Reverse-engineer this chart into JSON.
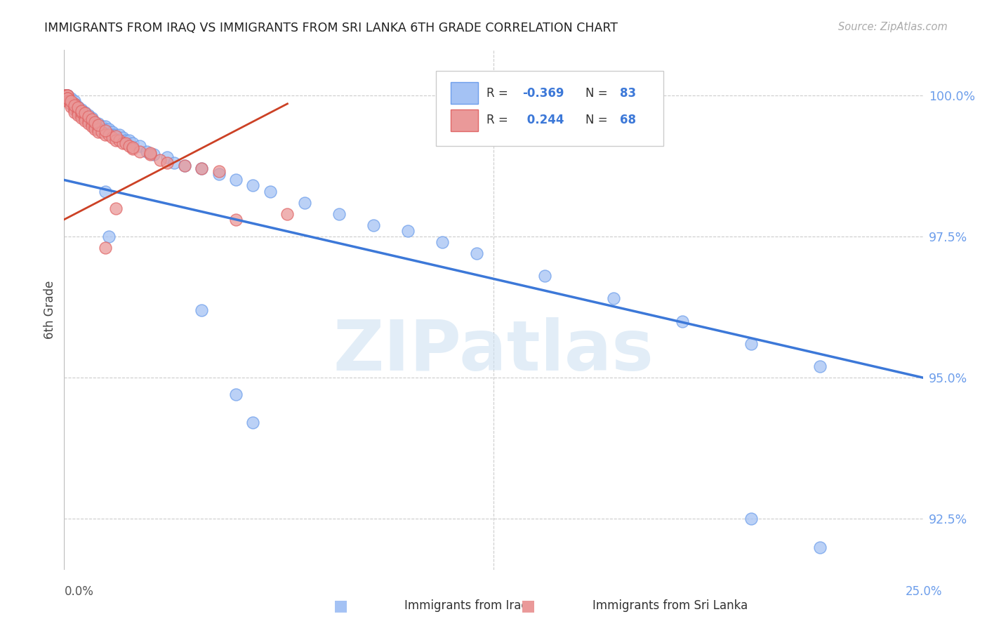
{
  "title": "IMMIGRANTS FROM IRAQ VS IMMIGRANTS FROM SRI LANKA 6TH GRADE CORRELATION CHART",
  "source": "Source: ZipAtlas.com",
  "ylabel": "6th Grade",
  "ytick_labels": [
    "92.5%",
    "95.0%",
    "97.5%",
    "100.0%"
  ],
  "ytick_values": [
    0.925,
    0.95,
    0.975,
    1.0
  ],
  "xmin": 0.0,
  "xmax": 0.25,
  "ymin": 0.916,
  "ymax": 1.008,
  "color_iraq": "#a4c2f4",
  "color_iraq_edge": "#6d9eeb",
  "color_srilanka": "#ea9999",
  "color_srilanka_edge": "#e06666",
  "color_iraq_line": "#3c78d8",
  "color_srilanka_line": "#cc4125",
  "color_right_axis": "#6d9eeb",
  "watermark_color": "#cfe2f3",
  "background_color": "#ffffff",
  "grid_color": "#cccccc",
  "iraq_x": [
    0.0002,
    0.0003,
    0.0005,
    0.0005,
    0.0007,
    0.0008,
    0.001,
    0.001,
    0.001,
    0.001,
    0.0015,
    0.002,
    0.002,
    0.002,
    0.002,
    0.003,
    0.003,
    0.003,
    0.003,
    0.003,
    0.004,
    0.004,
    0.004,
    0.004,
    0.005,
    0.005,
    0.005,
    0.006,
    0.006,
    0.006,
    0.007,
    0.007,
    0.007,
    0.008,
    0.008,
    0.008,
    0.009,
    0.009,
    0.01,
    0.01,
    0.011,
    0.011,
    0.012,
    0.012,
    0.013,
    0.013,
    0.014,
    0.014,
    0.015,
    0.016,
    0.017,
    0.018,
    0.019,
    0.02,
    0.022,
    0.024,
    0.026,
    0.03,
    0.032,
    0.035,
    0.04,
    0.045,
    0.05,
    0.055,
    0.06,
    0.07,
    0.08,
    0.09,
    0.1,
    0.11,
    0.12,
    0.14,
    0.16,
    0.18,
    0.2,
    0.22,
    0.012,
    0.013,
    0.04,
    0.05,
    0.055,
    0.2,
    0.22
  ],
  "iraq_y": [
    1.0,
    1.0,
    1.0,
    1.0,
    1.0,
    1.0,
    1.0,
    1.0,
    1.0,
    0.9995,
    0.999,
    0.999,
    0.9985,
    0.999,
    0.9995,
    0.999,
    0.9985,
    0.9985,
    0.998,
    0.9975,
    0.998,
    0.9975,
    0.997,
    0.9975,
    0.9975,
    0.997,
    0.9965,
    0.996,
    0.997,
    0.9965,
    0.996,
    0.9955,
    0.9965,
    0.996,
    0.995,
    0.9955,
    0.995,
    0.9945,
    0.9945,
    0.995,
    0.994,
    0.9945,
    0.9945,
    0.994,
    0.9935,
    0.994,
    0.9935,
    0.993,
    0.993,
    0.993,
    0.9925,
    0.992,
    0.992,
    0.9915,
    0.991,
    0.99,
    0.9895,
    0.989,
    0.988,
    0.9875,
    0.987,
    0.986,
    0.985,
    0.984,
    0.983,
    0.981,
    0.979,
    0.977,
    0.976,
    0.974,
    0.972,
    0.968,
    0.964,
    0.96,
    0.956,
    0.952,
    0.983,
    0.975,
    0.962,
    0.947,
    0.942,
    0.925,
    0.92
  ],
  "srilanka_x": [
    0.0002,
    0.0003,
    0.0005,
    0.0007,
    0.001,
    0.001,
    0.001,
    0.001,
    0.001,
    0.0015,
    0.002,
    0.002,
    0.002,
    0.003,
    0.003,
    0.003,
    0.003,
    0.004,
    0.004,
    0.004,
    0.005,
    0.005,
    0.005,
    0.006,
    0.006,
    0.007,
    0.007,
    0.008,
    0.008,
    0.009,
    0.009,
    0.01,
    0.01,
    0.011,
    0.012,
    0.013,
    0.014,
    0.015,
    0.016,
    0.017,
    0.018,
    0.019,
    0.02,
    0.022,
    0.025,
    0.028,
    0.03,
    0.035,
    0.04,
    0.045,
    0.001,
    0.002,
    0.003,
    0.004,
    0.005,
    0.006,
    0.007,
    0.008,
    0.009,
    0.01,
    0.012,
    0.015,
    0.02,
    0.025,
    0.012,
    0.015,
    0.05,
    0.065
  ],
  "srilanka_y": [
    1.0,
    1.0,
    1.0,
    1.0,
    1.0,
    1.0,
    0.9995,
    0.999,
    0.999,
    0.999,
    0.9985,
    0.9985,
    0.998,
    0.9985,
    0.998,
    0.9975,
    0.997,
    0.9975,
    0.997,
    0.9965,
    0.9965,
    0.996,
    0.997,
    0.996,
    0.9955,
    0.9955,
    0.995,
    0.995,
    0.9945,
    0.9945,
    0.994,
    0.994,
    0.9935,
    0.9935,
    0.993,
    0.993,
    0.9925,
    0.992,
    0.992,
    0.9915,
    0.9915,
    0.991,
    0.9905,
    0.99,
    0.9895,
    0.9885,
    0.988,
    0.9875,
    0.987,
    0.9865,
    0.9995,
    0.999,
    0.9982,
    0.9978,
    0.9972,
    0.9968,
    0.9962,
    0.9958,
    0.9952,
    0.9948,
    0.9938,
    0.9928,
    0.9908,
    0.9898,
    0.973,
    0.98,
    0.978,
    0.979
  ]
}
